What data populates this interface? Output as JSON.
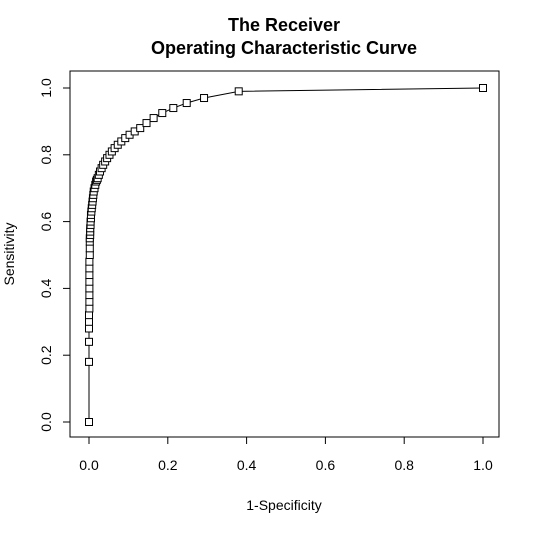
{
  "chart_data": {
    "type": "line",
    "title": [
      "The Receiver",
      "Operating Characteristic Curve"
    ],
    "xlabel": "1-Specificity",
    "ylabel": "Sensitivity",
    "xlim": [
      0.0,
      1.0
    ],
    "ylim": [
      0.0,
      1.0
    ],
    "x_ticks": [
      "0.0",
      "0.2",
      "0.4",
      "0.6",
      "0.8",
      "1.0"
    ],
    "y_ticks": [
      "0.0",
      "0.2",
      "0.4",
      "0.6",
      "0.8",
      "1.0"
    ],
    "grid": false,
    "legend": "none",
    "marker": "open-square",
    "line_color": "#000000",
    "series": [
      {
        "x": [
          0.0,
          0.0,
          0.0,
          0.0,
          0.0,
          0.0,
          0.001,
          0.001,
          0.001,
          0.001,
          0.001,
          0.001,
          0.001,
          0.001,
          0.002,
          0.002,
          0.002,
          0.002,
          0.003,
          0.003,
          0.003,
          0.004,
          0.004,
          0.005,
          0.005,
          0.006,
          0.007,
          0.008,
          0.009,
          0.01,
          0.011,
          0.012,
          0.014,
          0.016,
          0.018,
          0.02,
          0.022,
          0.025,
          0.028,
          0.032,
          0.036,
          0.041,
          0.046,
          0.052,
          0.058,
          0.065,
          0.073,
          0.082,
          0.092,
          0.103,
          0.116,
          0.13,
          0.146,
          0.164,
          0.186,
          0.214,
          0.248,
          0.292,
          0.38,
          1.0
        ],
        "y": [
          0.0,
          0.18,
          0.24,
          0.28,
          0.3,
          0.32,
          0.34,
          0.36,
          0.38,
          0.4,
          0.42,
          0.44,
          0.46,
          0.48,
          0.5,
          0.52,
          0.54,
          0.55,
          0.56,
          0.57,
          0.58,
          0.59,
          0.6,
          0.61,
          0.62,
          0.63,
          0.64,
          0.65,
          0.66,
          0.67,
          0.68,
          0.69,
          0.7,
          0.71,
          0.72,
          0.725,
          0.73,
          0.74,
          0.75,
          0.76,
          0.77,
          0.78,
          0.79,
          0.8,
          0.81,
          0.82,
          0.83,
          0.84,
          0.85,
          0.86,
          0.87,
          0.88,
          0.895,
          0.91,
          0.925,
          0.94,
          0.955,
          0.97,
          0.99,
          1.0
        ]
      }
    ]
  }
}
